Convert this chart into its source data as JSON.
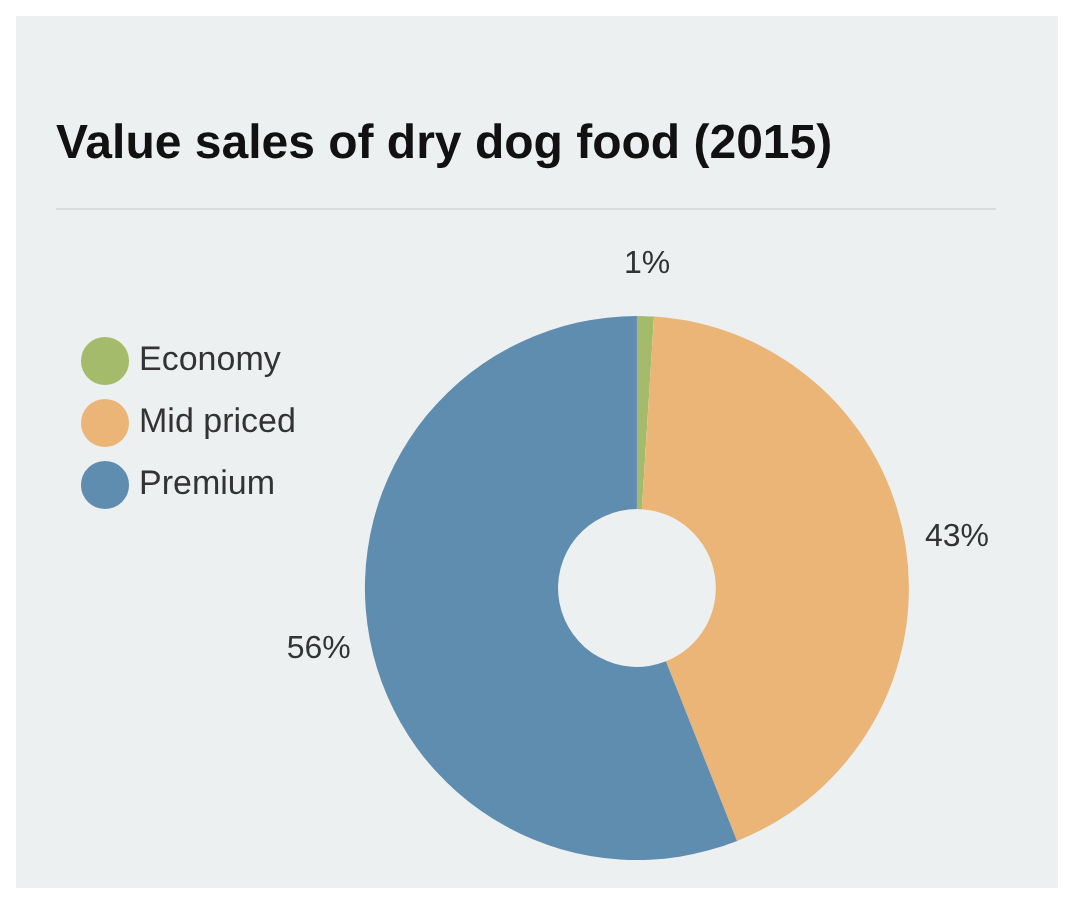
{
  "chart_data": {
    "type": "donut",
    "title": "Value sales of dry dog food (2015)",
    "categories": [
      "Economy",
      "Mid priced",
      "Premium"
    ],
    "values": [
      1,
      43,
      56
    ],
    "colors": [
      "#a3bb6a",
      "#ebb577",
      "#5f8db0"
    ],
    "value_labels": [
      "1%",
      "43%",
      "56%"
    ],
    "legend": "top left"
  }
}
